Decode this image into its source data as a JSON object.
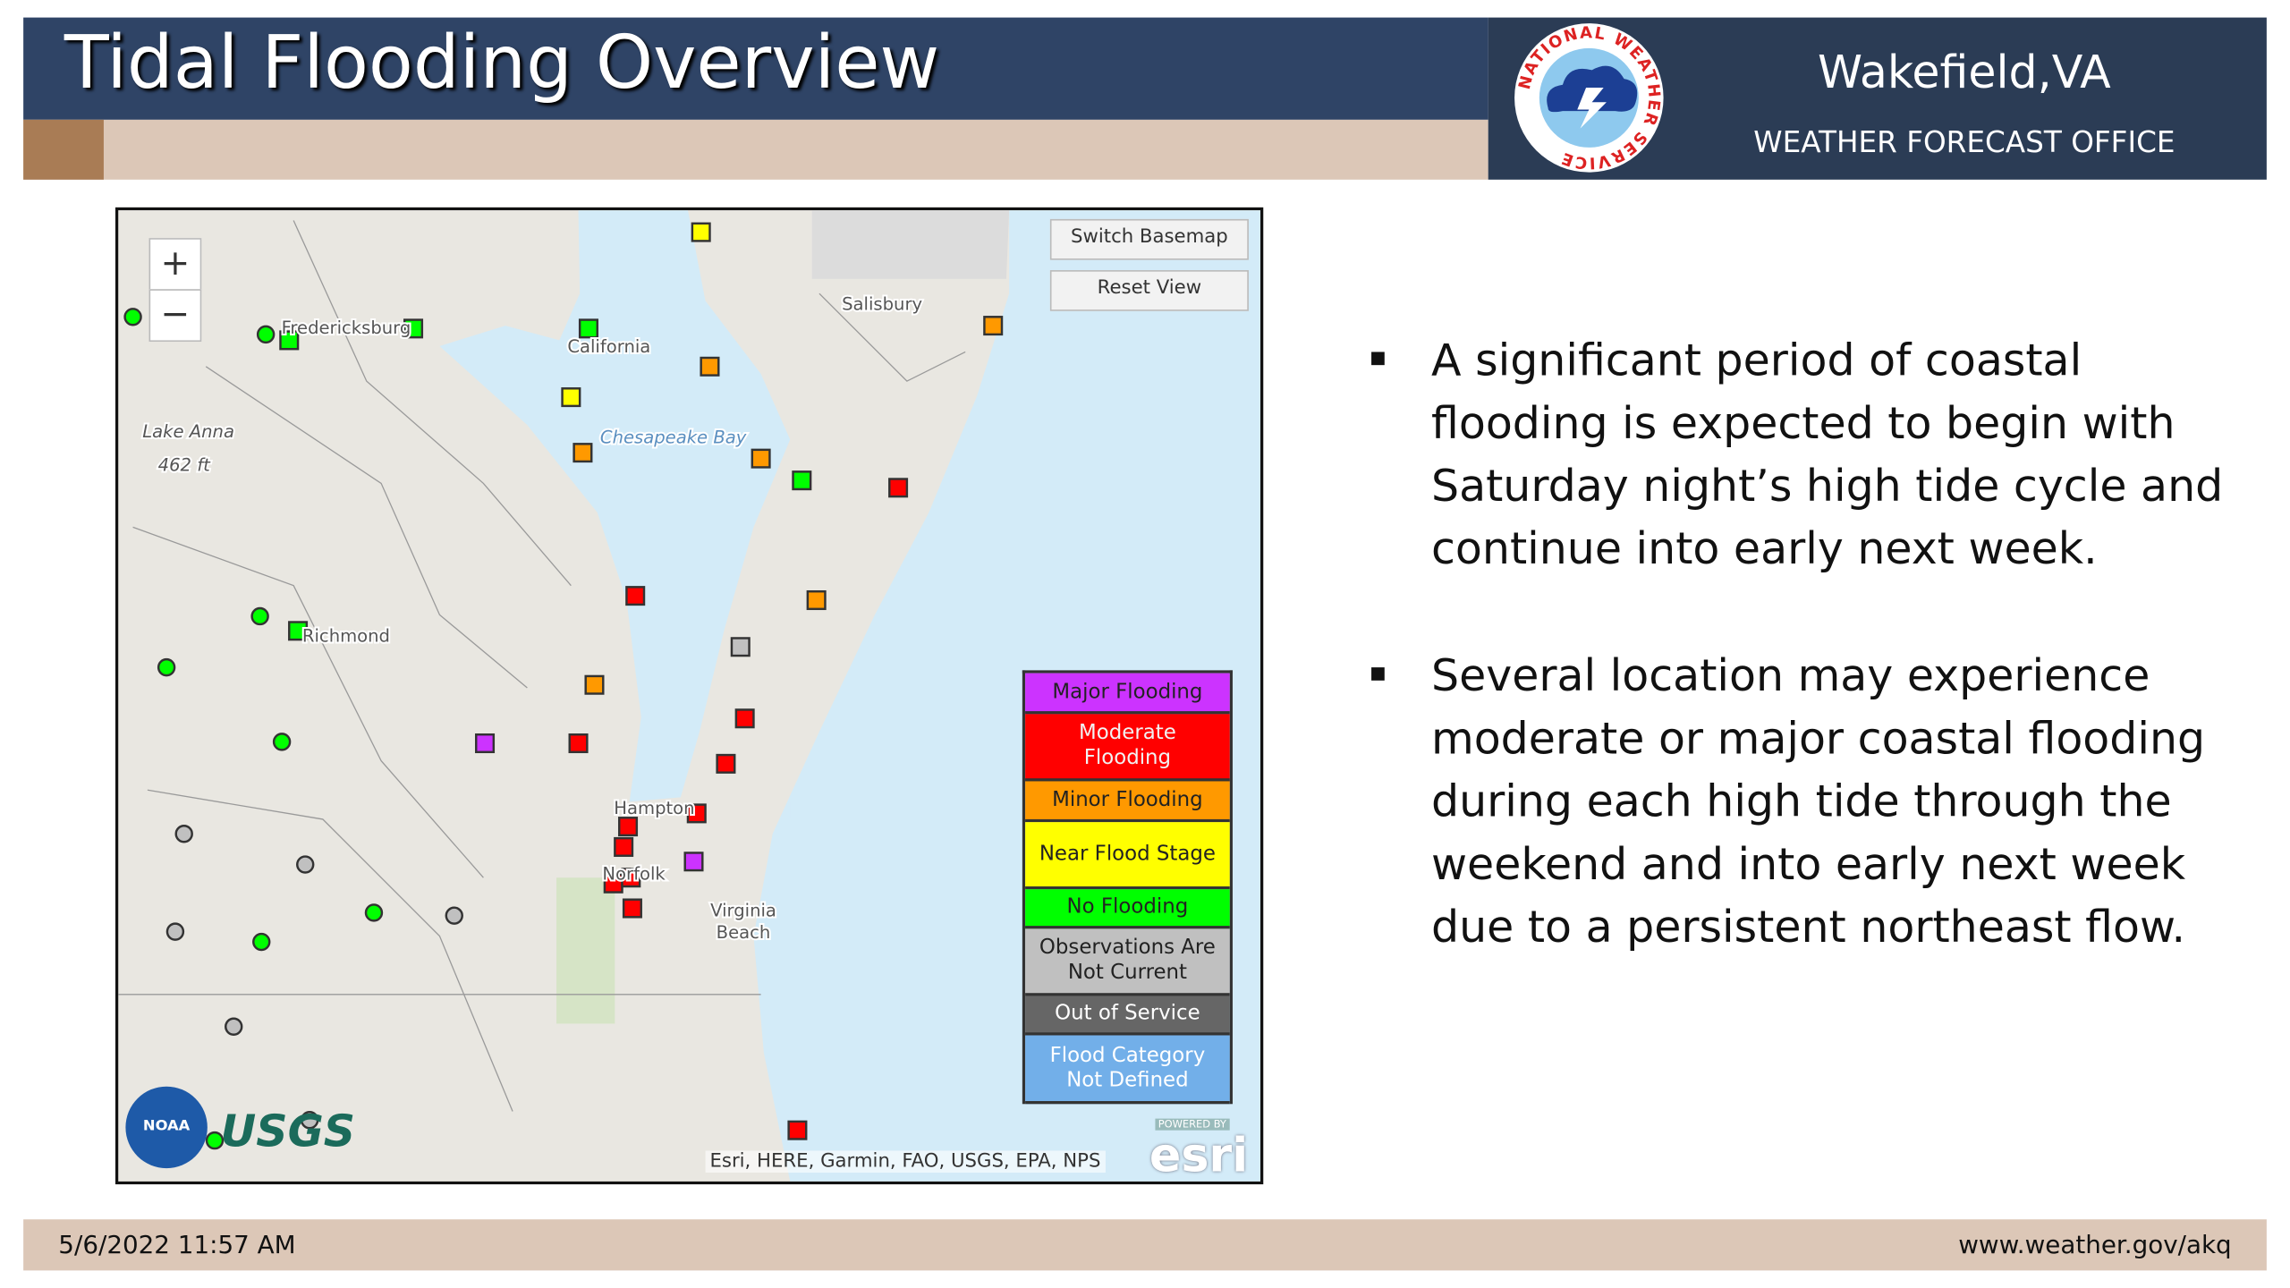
{
  "header": {
    "title": "Tidal Flooding Overview",
    "office": "Wakefield,VA",
    "office_type": "WEATHER FORECAST OFFICE",
    "logo_text": "NATIONAL WEATHER SERVICE"
  },
  "map": {
    "controls": {
      "zoom_in": "+",
      "zoom_out": "−",
      "switch_basemap": "Switch Basemap",
      "reset_view": "Reset View"
    },
    "labels": [
      "Salisbury",
      "California",
      "Chesapeake Bay",
      "Fredericksburg",
      "Richmond",
      "Hampton",
      "Norfolk",
      "Virginia",
      "Beach",
      "Lake Anna",
      "462 ft"
    ],
    "legend": [
      {
        "label": "Major Flooding",
        "color": "#cc33ff",
        "text_color": "#222222"
      },
      {
        "label": "Moderate Flooding",
        "color": "#ff0000",
        "text_color": "#f2f2f2"
      },
      {
        "label": "Minor Flooding",
        "color": "#ff9900",
        "text_color": "#222222"
      },
      {
        "label": "Near Flood Stage",
        "color": "#ffff00",
        "text_color": "#222222"
      },
      {
        "label": "No Flooding",
        "color": "#00ff00",
        "text_color": "#222222"
      },
      {
        "label": "Observations Are Not Current",
        "color": "#c0c0c0",
        "text_color": "#222222"
      },
      {
        "label": "Out of Service",
        "color": "#666666",
        "text_color": "#ffffff"
      },
      {
        "label": "Flood Category Not Defined",
        "color": "#72afe9",
        "text_color": "#ffffff"
      }
    ],
    "attribution": "Esri, HERE, Garmin, FAO, USGS, EPA, NPS",
    "logos": {
      "noaa": "NOAA",
      "usgs": "USGS",
      "esri_caption": "POWERED BY",
      "esri": "esri"
    }
  },
  "bullets": [
    [
      "A significant period of coastal",
      "flooding is expected to begin with",
      "Saturday night’s high tide cycle and",
      "continue into early next week."
    ],
    [
      "Several location may experience",
      "moderate or major coastal flooding",
      "during each high tide through the",
      "weekend and into early next week",
      "due to a persistent northeast flow."
    ]
  ],
  "footer": {
    "date": "5/6/2022 11:57 AM",
    "url": "www.weather.gov/akq"
  }
}
